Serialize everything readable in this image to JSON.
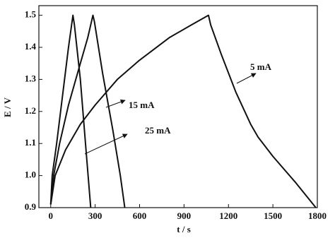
{
  "chart_data": {
    "type": "line",
    "x_label": "t / s",
    "y_label": "E / V",
    "xlim": [
      -80,
      1800
    ],
    "ylim": [
      0.9,
      1.53
    ],
    "xticks": [
      0,
      300,
      600,
      900,
      1200,
      1500,
      1800
    ],
    "yticks": [
      0.9,
      {
        "value": 1.0,
        "label": "1.0"
      },
      1.1,
      1.2,
      1.3,
      1.4,
      1.5
    ],
    "series": [
      {
        "name": "25 mA",
        "color": "#111111",
        "x": [
          0,
          10,
          40,
          80,
          120,
          150,
          160,
          200,
          240,
          270
        ],
        "values": [
          0.91,
          1.0,
          1.1,
          1.25,
          1.4,
          1.5,
          1.47,
          1.3,
          1.07,
          0.9
        ]
      },
      {
        "name": "15 mA",
        "color": "#111111",
        "x": [
          0,
          20,
          60,
          120,
          200,
          250,
          285,
          295,
          350,
          420,
          470,
          500
        ],
        "values": [
          0.91,
          1.0,
          1.1,
          1.22,
          1.35,
          1.43,
          1.5,
          1.48,
          1.32,
          1.14,
          1.0,
          0.9
        ]
      },
      {
        "name": "5 mA",
        "color": "#111111",
        "x": [
          0,
          30,
          100,
          200,
          300,
          450,
          600,
          800,
          950,
          1065,
          1080,
          1150,
          1250,
          1350,
          1400,
          1500,
          1650,
          1790
        ],
        "values": [
          0.91,
          1.0,
          1.08,
          1.16,
          1.22,
          1.3,
          1.36,
          1.43,
          1.47,
          1.5,
          1.47,
          1.38,
          1.26,
          1.16,
          1.12,
          1.06,
          0.98,
          0.9
        ]
      }
    ],
    "annotations": [
      "5 mA",
      "15 mA",
      "25 mA"
    ]
  }
}
